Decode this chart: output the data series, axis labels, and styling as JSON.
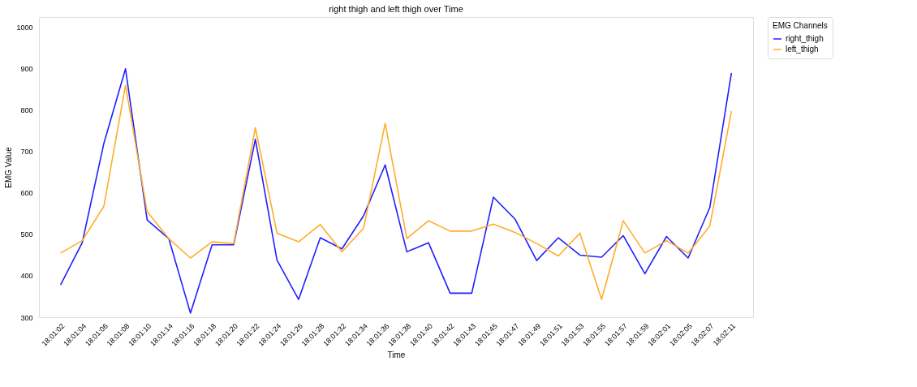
{
  "chart_data": {
    "type": "line",
    "title": "right thigh and left thigh over Time",
    "xlabel": "Time",
    "ylabel": "EMG Value",
    "legend_title": "EMG Channels",
    "categories": [
      "18:01:02",
      "18:01:04",
      "18:01:06",
      "18:01:08",
      "18:01:10",
      "18:01:14",
      "18:01:16",
      "18:01:18",
      "18:01:20",
      "18:01:22",
      "18:01:24",
      "18:01:26",
      "18:01:28",
      "18:01:32",
      "18:01:34",
      "18:01:36",
      "18:01:38",
      "18:01:40",
      "18:01:42",
      "18:01:43",
      "18:01:45",
      "18:01:47",
      "18:01:49",
      "18:01:51",
      "18:01:53",
      "18:01:55",
      "18:01:57",
      "18:01:59",
      "18:02:01",
      "18:02:05",
      "18:02:07",
      "18:02:11"
    ],
    "series": [
      {
        "name": "right_thigh",
        "color": "#1f1fff",
        "values": [
          378,
          480,
          720,
          900,
          535,
          490,
          310,
          475,
          475,
          730,
          438,
          343,
          492,
          465,
          545,
          668,
          458,
          480,
          358,
          358,
          590,
          537,
          437,
          492,
          450,
          445,
          497,
          405,
          495,
          443,
          565,
          890
        ]
      },
      {
        "name": "left_thigh",
        "color": "#ffad2a",
        "values": [
          455,
          485,
          568,
          860,
          555,
          490,
          443,
          482,
          478,
          758,
          503,
          482,
          524,
          458,
          515,
          768,
          490,
          533,
          508,
          508,
          525,
          505,
          478,
          448,
          503,
          343,
          533,
          455,
          485,
          455,
          520,
          798
        ]
      }
    ],
    "ylim": [
      300,
      1025
    ],
    "yticks": [
      300,
      400,
      500,
      600,
      700,
      800,
      900,
      1000
    ],
    "grid": false,
    "legend": "top right",
    "line_style": "solid",
    "marker": "none"
  }
}
